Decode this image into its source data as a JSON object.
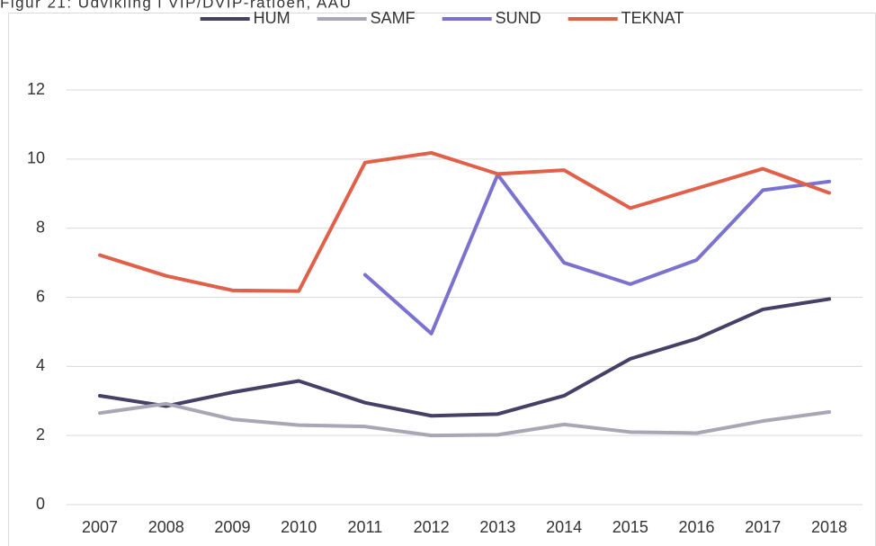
{
  "chart_data": {
    "type": "line",
    "title": "Figur 21: Udvikling i VIP/DVIP-ratioen, AAU",
    "categories": [
      "2007",
      "2008",
      "2009",
      "2010",
      "2011",
      "2012",
      "2013",
      "2014",
      "2015",
      "2016",
      "2017",
      "2018"
    ],
    "series": [
      {
        "name": "HUM",
        "color": "#463f66",
        "values": [
          3.15,
          2.85,
          3.25,
          3.58,
          2.95,
          2.57,
          2.62,
          3.15,
          4.22,
          4.8,
          5.65,
          5.95
        ]
      },
      {
        "name": "SAMF",
        "color": "#a9a6b6",
        "values": [
          2.65,
          2.92,
          2.47,
          2.3,
          2.26,
          2.0,
          2.02,
          2.32,
          2.1,
          2.07,
          2.42,
          2.68
        ]
      },
      {
        "name": "SUND",
        "color": "#7b72d0",
        "values": [
          null,
          null,
          null,
          null,
          6.65,
          4.95,
          9.55,
          7.0,
          6.38,
          7.08,
          9.1,
          9.35
        ]
      },
      {
        "name": "TEKNAT",
        "color": "#e0604a",
        "values": [
          7.22,
          6.62,
          6.2,
          6.18,
          9.9,
          10.18,
          9.57,
          9.68,
          8.58,
          9.15,
          9.72,
          9.02
        ]
      }
    ],
    "ylim": [
      0,
      12
    ],
    "yticks": [
      0,
      2,
      4,
      6,
      8,
      10,
      12
    ],
    "grid": true,
    "legend": "top"
  }
}
